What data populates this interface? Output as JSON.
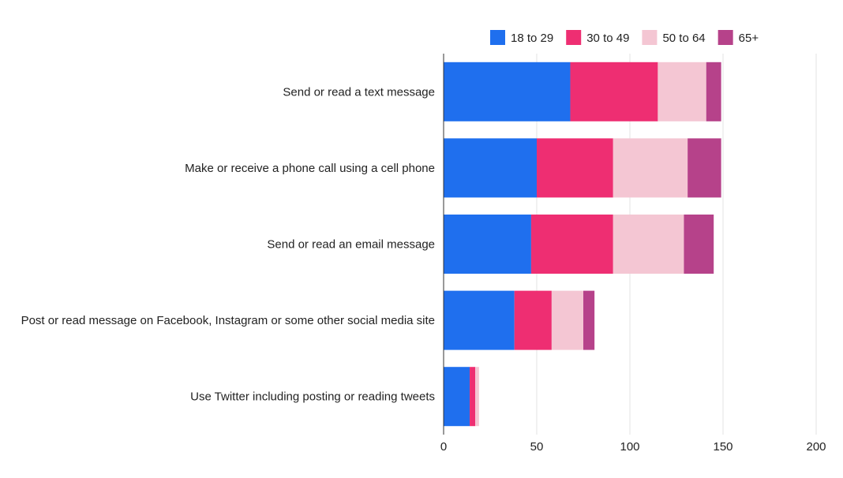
{
  "chart_data": {
    "type": "bar",
    "orientation": "horizontal",
    "stacked": true,
    "title": "",
    "xlabel": "",
    "ylabel": "",
    "categories": [
      "Send or read a text message",
      "Make or receive a phone call using a cell phone",
      "Send or read an email message",
      "Post or read message on Facebook, Instagram or some other social media site",
      "Use Twitter including posting or reading tweets"
    ],
    "series": [
      {
        "name": "18 to 29",
        "color": "#1f6fee",
        "values": [
          68,
          50,
          47,
          38,
          14
        ]
      },
      {
        "name": "30 to 49",
        "color": "#ee2e72",
        "values": [
          47,
          41,
          44,
          20,
          3
        ]
      },
      {
        "name": "50 to 64",
        "color": "#f4c6d3",
        "values": [
          26,
          40,
          38,
          17,
          2
        ]
      },
      {
        "name": "65+",
        "color": "#b6428a",
        "values": [
          8,
          18,
          16,
          6,
          0
        ]
      }
    ],
    "xlim": [
      0,
      200
    ],
    "xticks": [
      0,
      50,
      100,
      150,
      200
    ],
    "xtick_labels": [
      "0",
      "50",
      "100",
      "150",
      "200"
    ],
    "grid": true,
    "legend_position": "top-right"
  }
}
